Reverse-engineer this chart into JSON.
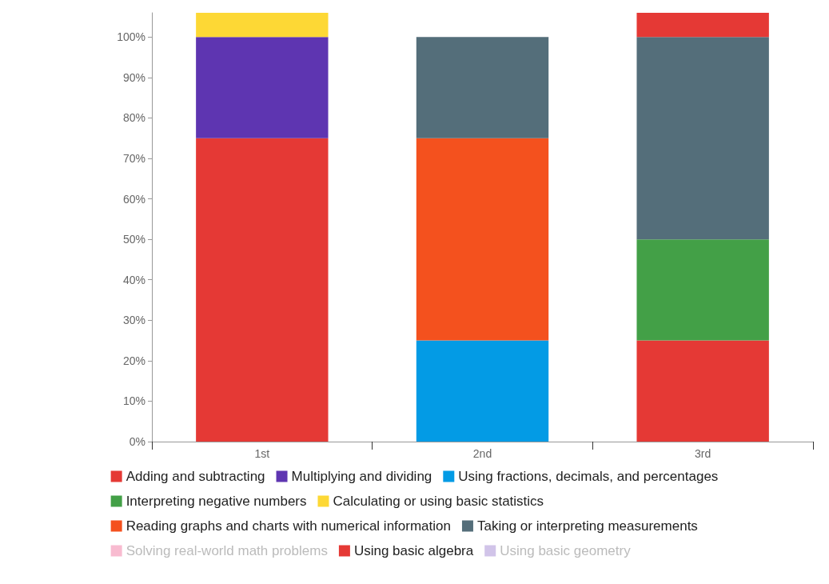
{
  "chart_data": {
    "type": "bar",
    "stacked": true,
    "categories": [
      "1st",
      "2nd",
      "3rd"
    ],
    "series": [
      {
        "name": "Adding and subtracting",
        "color": "#e53935",
        "values": [
          75,
          null,
          25
        ]
      },
      {
        "name": "Multiplying and dividing",
        "color": "#5e35b1",
        "values": [
          25,
          null,
          null
        ]
      },
      {
        "name": "Using fractions, decimals, and percentages",
        "color": "#039be5",
        "values": [
          null,
          25,
          null
        ]
      },
      {
        "name": "Interpreting negative numbers",
        "color": "#43a047",
        "values": [
          null,
          null,
          25
        ]
      },
      {
        "name": "Calculating or using basic statistics",
        "color": "#fdd835",
        "values": [
          6,
          null,
          null
        ]
      },
      {
        "name": "Reading graphs and charts with numerical information",
        "color": "#f4511e",
        "values": [
          null,
          50,
          null
        ]
      },
      {
        "name": "Taking or interpreting measurements",
        "color": "#546e7a",
        "values": [
          null,
          25,
          50
        ]
      },
      {
        "name": "Solving real-world math problems",
        "color": "#f8bbd0",
        "values": [
          null,
          null,
          null
        ]
      },
      {
        "name": "Using basic algebra",
        "color": "#e53935",
        "values": [
          null,
          null,
          6
        ]
      },
      {
        "name": "Using basic geometry",
        "color": "#d1c4e9",
        "values": [
          null,
          null,
          null
        ]
      }
    ],
    "ylim": [
      0,
      106
    ],
    "yticks": [
      {
        "value": 0,
        "label": "0%"
      },
      {
        "value": 10,
        "label": "10%"
      },
      {
        "value": 20,
        "label": "20%"
      },
      {
        "value": 30,
        "label": "30%"
      },
      {
        "value": 40,
        "label": "40%"
      },
      {
        "value": 50,
        "label": "50%"
      },
      {
        "value": 60,
        "label": "60%"
      },
      {
        "value": 70,
        "label": "70%"
      },
      {
        "value": 80,
        "label": "80%"
      },
      {
        "value": 90,
        "label": "90%"
      },
      {
        "value": 100,
        "label": "100%"
      }
    ],
    "grid": false,
    "legend": "bottom"
  }
}
